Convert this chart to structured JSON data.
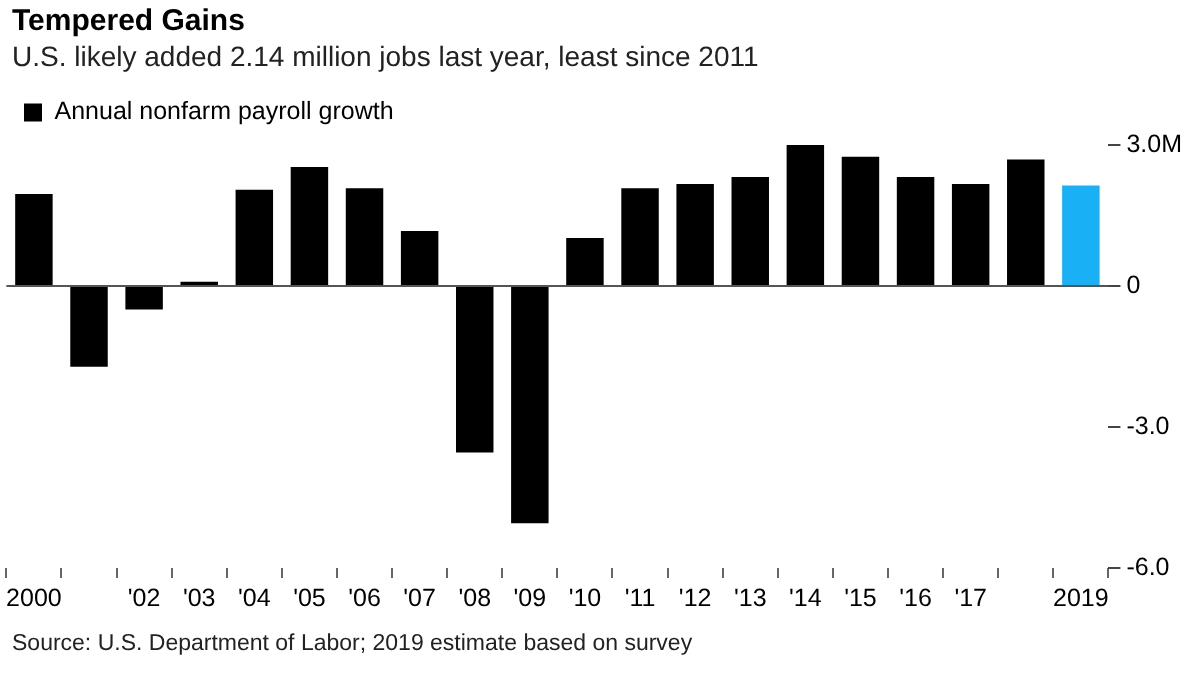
{
  "chart_data": {
    "type": "bar",
    "title": "Tempered Gains",
    "subtitle": "U.S. likely added 2.14 million jobs last year, least since 2011",
    "categories": [
      "2000",
      null,
      "'02",
      "'03",
      "'04",
      "'05",
      "'06",
      "'07",
      "'08",
      "'09",
      "'10",
      "'11",
      "'12",
      "'13",
      "'14",
      "'15",
      "'16",
      "'17",
      null,
      "2019"
    ],
    "series": [
      {
        "name": "Annual nonfarm payroll growth",
        "color": "#000000",
        "colors": [
          "#000000",
          "#000000",
          "#000000",
          "#000000",
          "#000000",
          "#000000",
          "#000000",
          "#000000",
          "#000000",
          "#000000",
          "#000000",
          "#000000",
          "#000000",
          "#000000",
          "#000000",
          "#000000",
          "#000000",
          "#000000",
          "#000000",
          "#1ab0f5"
        ],
        "values": [
          1.96,
          -1.72,
          -0.5,
          0.09,
          2.05,
          2.53,
          2.08,
          1.17,
          -3.54,
          -5.05,
          1.02,
          2.08,
          2.17,
          2.32,
          3.0,
          2.75,
          2.32,
          2.17,
          2.69,
          2.14
        ]
      }
    ],
    "ylim": [
      -6,
      3
    ],
    "yticks": [
      {
        "value": 3,
        "label": "3.0M"
      },
      0,
      {
        "value": -3,
        "label": "-3.0"
      },
      {
        "value": -6,
        "label": "-6.0"
      }
    ],
    "grid": false,
    "ref_lines": [
      {
        "axis": "y",
        "value": 0,
        "color": "#555555"
      }
    ],
    "legend": "top left",
    "annotations": [
      "Source: U.S. Department of Labor; 2019 estimate based on survey"
    ]
  }
}
